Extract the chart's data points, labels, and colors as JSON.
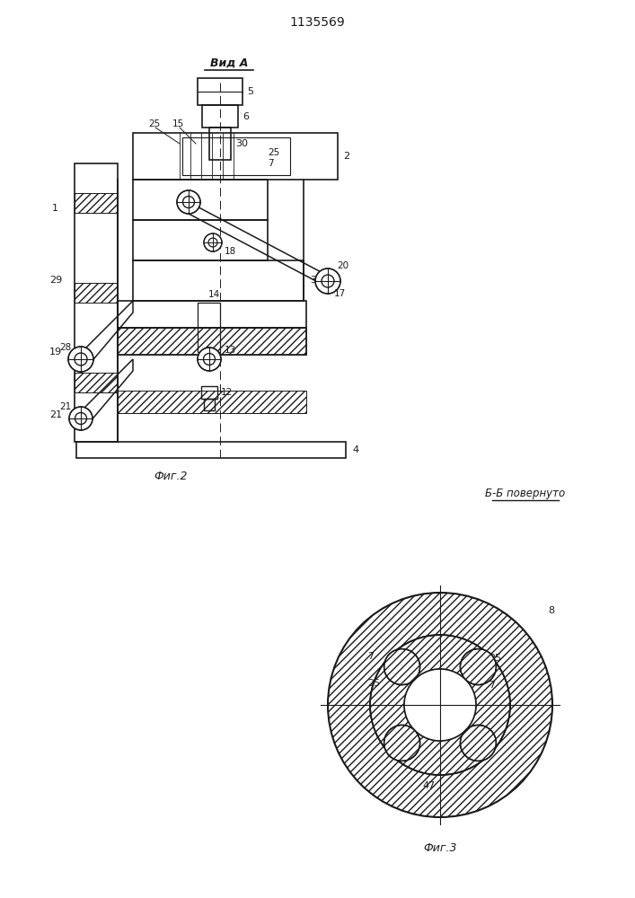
{
  "title": "1135569",
  "line_color": "#1a1a1a",
  "fig2_label": "Фиг.2",
  "fig3_label": "Фиг.3",
  "vid_a_label": "Вид А",
  "bb_label": "Б-Б повернуто"
}
